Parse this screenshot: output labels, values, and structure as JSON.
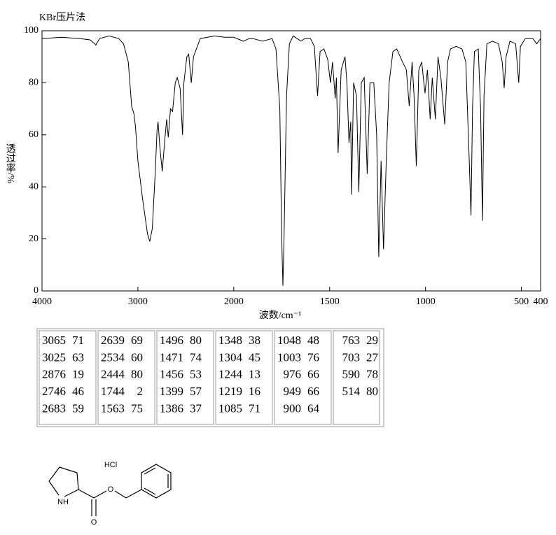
{
  "chart_data": {
    "type": "line",
    "title": "KBr压片法",
    "xlabel": "波数/cm⁻¹",
    "ylabel": "透过率/%",
    "xlim": [
      4000,
      400
    ],
    "xbreak": 2000,
    "xbreak_factor": 2,
    "xticks": [
      4000,
      3000,
      2000,
      1500,
      1000,
      500,
      400
    ],
    "ylim": [
      0,
      100
    ],
    "yticks": [
      0,
      20,
      40,
      60,
      80,
      100
    ],
    "color": "#000000",
    "x": [
      4000,
      3800,
      3600,
      3500,
      3450,
      3440,
      3400,
      3300,
      3200,
      3150,
      3100,
      3065,
      3040,
      3025,
      3000,
      2950,
      2900,
      2876,
      2850,
      2820,
      2800,
      2790,
      2770,
      2746,
      2720,
      2700,
      2683,
      2660,
      2639,
      2610,
      2590,
      2560,
      2534,
      2520,
      2490,
      2470,
      2444,
      2420,
      2350,
      2200,
      2100,
      2000,
      1950,
      1920,
      1900,
      1850,
      1800,
      1780,
      1760,
      1750,
      1744,
      1738,
      1725,
      1710,
      1690,
      1650,
      1630,
      1600,
      1580,
      1563,
      1550,
      1530,
      1510,
      1496,
      1485,
      1471,
      1465,
      1456,
      1440,
      1420,
      1410,
      1399,
      1390,
      1386,
      1375,
      1360,
      1348,
      1335,
      1320,
      1304,
      1290,
      1270,
      1255,
      1244,
      1232,
      1219,
      1205,
      1190,
      1170,
      1150,
      1120,
      1100,
      1085,
      1070,
      1060,
      1048,
      1035,
      1020,
      1003,
      990,
      976,
      965,
      949,
      935,
      920,
      900,
      885,
      870,
      840,
      810,
      790,
      772,
      763,
      755,
      745,
      725,
      713,
      703,
      695,
      680,
      650,
      620,
      600,
      590,
      580,
      560,
      530,
      514,
      505,
      480,
      440,
      420,
      400
    ],
    "values": [
      97,
      97.5,
      97,
      96.5,
      95,
      94.5,
      97,
      98,
      97,
      95,
      88,
      71,
      68,
      63,
      50,
      35,
      22,
      19,
      24,
      45,
      62,
      65,
      55,
      46,
      58,
      66,
      59,
      70,
      69,
      80,
      82,
      78,
      60,
      80,
      90,
      91,
      80,
      90,
      97,
      98,
      97.5,
      97.5,
      96,
      97,
      97,
      96,
      97,
      93,
      70,
      20,
      2,
      20,
      75,
      95,
      98,
      96,
      97,
      97,
      94,
      75,
      92,
      93,
      89,
      80,
      88,
      74,
      82,
      53,
      85,
      90,
      80,
      57,
      65,
      37,
      80,
      75,
      38,
      80,
      82,
      45,
      80,
      80,
      60,
      13,
      50,
      16,
      50,
      80,
      92,
      93,
      88,
      85,
      71,
      88,
      75,
      48,
      85,
      88,
      76,
      85,
      66,
      82,
      66,
      90,
      82,
      64,
      88,
      93,
      94,
      93,
      88,
      50,
      29,
      70,
      92,
      93,
      70,
      27,
      75,
      95,
      96,
      95,
      88,
      78,
      90,
      96,
      95,
      80,
      94,
      97,
      97,
      95,
      97
    ]
  },
  "peak_table": {
    "columns": [
      [
        [
          3065,
          71
        ],
        [
          3025,
          63
        ],
        [
          2876,
          19
        ],
        [
          2746,
          46
        ],
        [
          2683,
          59
        ]
      ],
      [
        [
          2639,
          69
        ],
        [
          2534,
          60
        ],
        [
          2444,
          80
        ],
        [
          1744,
          2
        ],
        [
          1563,
          75
        ]
      ],
      [
        [
          1496,
          80
        ],
        [
          1471,
          74
        ],
        [
          1456,
          53
        ],
        [
          1399,
          57
        ],
        [
          1386,
          37
        ]
      ],
      [
        [
          1348,
          38
        ],
        [
          1304,
          45
        ],
        [
          1244,
          13
        ],
        [
          1219,
          16
        ],
        [
          1085,
          71
        ]
      ],
      [
        [
          1048,
          48
        ],
        [
          1003,
          76
        ],
        [
          976,
          66
        ],
        [
          949,
          66
        ],
        [
          900,
          64
        ]
      ],
      [
        [
          763,
          29
        ],
        [
          703,
          27
        ],
        [
          590,
          78
        ],
        [
          514,
          80
        ]
      ]
    ]
  },
  "structure": {
    "salt": "HCl",
    "amine": "NH",
    "carbonyl_o": "O",
    "ester_o": "O"
  }
}
